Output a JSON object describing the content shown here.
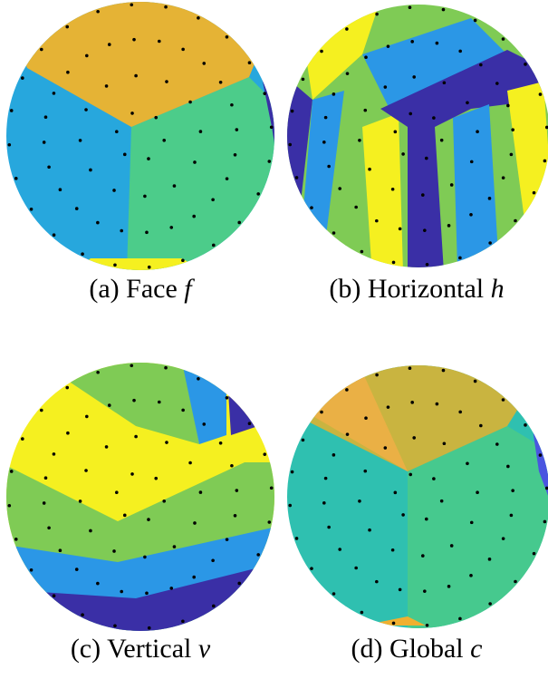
{
  "panels": [
    {
      "label": "(a) Face",
      "symbol": "f"
    },
    {
      "label": "(b) Horizontal",
      "symbol": "h"
    },
    {
      "label": "(c) Vertical",
      "symbol": "v"
    },
    {
      "label": "(d) Global",
      "symbol": "c"
    }
  ]
}
